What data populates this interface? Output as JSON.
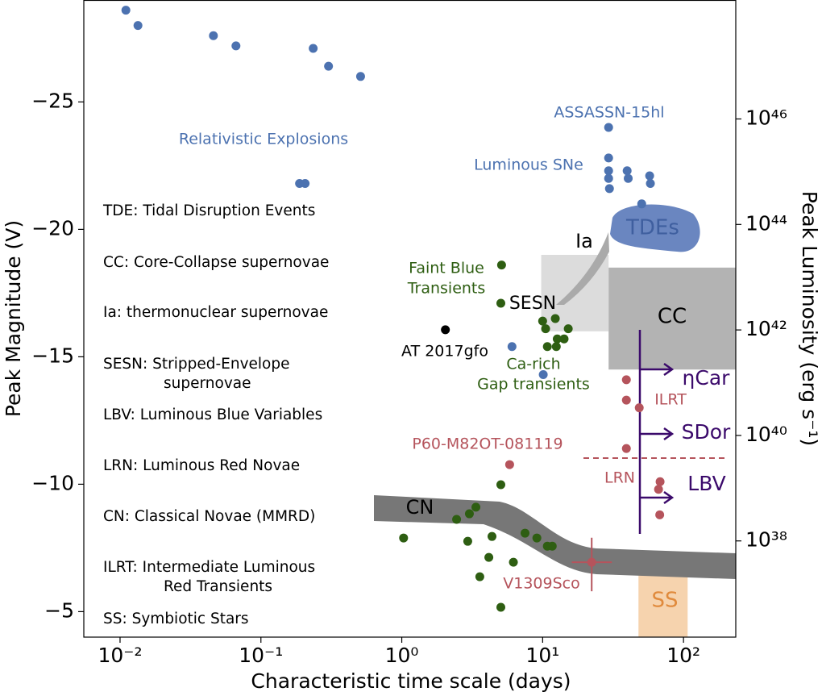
{
  "chart_data": {
    "type": "scatter",
    "xlabel": "Characteristic time scale (days)",
    "ylabel": "Peak Magnitude (V)",
    "y2label": "Peak Luminosity (erg s⁻¹)",
    "xscale": "log",
    "y2scale": "log",
    "xlim": [
      0.00553,
      235
    ],
    "ylim": [
      -4,
      -29
    ],
    "y2lim": [
      1.5e+36,
      1.8e+48
    ],
    "xticks": [
      {
        "value": 0.01,
        "label": "10⁻²"
      },
      {
        "value": 0.1,
        "label": "10⁻¹"
      },
      {
        "value": 1,
        "label": "10⁰"
      },
      {
        "value": 10,
        "label": "10¹"
      },
      {
        "value": 100,
        "label": "10²"
      }
    ],
    "yticks": [
      {
        "value": -25,
        "label": "−25"
      },
      {
        "value": -20,
        "label": "−20"
      },
      {
        "value": -15,
        "label": "−15"
      },
      {
        "value": -10,
        "label": "−10"
      },
      {
        "value": -5,
        "label": "−5"
      }
    ],
    "y2ticks": [
      {
        "value": 1e+46,
        "label": "10⁴⁶"
      },
      {
        "value": 1e+44,
        "label": "10⁴⁴"
      },
      {
        "value": 1e+42,
        "label": "10⁴²"
      },
      {
        "value": 1e+40,
        "label": "10⁴⁰"
      },
      {
        "value": 1e+38,
        "label": "10³⁸"
      }
    ],
    "series": [
      {
        "color": "#4c72b0",
        "x": [
          0.011,
          0.0134,
          0.046,
          0.0665,
          0.235,
          0.302,
          0.51,
          0.188,
          0.206,
          29.4,
          29.4,
          29.4,
          29.4,
          29.8,
          39.8,
          40.5,
          57.5,
          58.2,
          50.5,
          6.06,
          10.1
        ],
        "values": [
          -28.6,
          -28.0,
          -27.6,
          -27.2,
          -27.1,
          -26.4,
          -26.0,
          -21.8,
          -21.8,
          -24.0,
          -22.8,
          -22.3,
          -22.0,
          -21.6,
          -22.3,
          -22.0,
          -22.1,
          -21.8,
          -21.0,
          -15.4,
          -14.3
        ]
      },
      {
        "color": "#2e5e12",
        "x": [
          5.11,
          5.05,
          10.0,
          10.5,
          12.3,
          15.2,
          12.7,
          10.8,
          12.5,
          14.2,
          5.05,
          1.03,
          2.45,
          3.02,
          3.36,
          2.94,
          4.37,
          7.5,
          9.1,
          11.7,
          10.8,
          4.15,
          6.2,
          3.58,
          5.05
        ],
        "values": [
          -18.6,
          -17.1,
          -16.4,
          -16.1,
          -16.5,
          -16.1,
          -15.7,
          -15.4,
          -15.4,
          -15.7,
          -9.98,
          -7.89,
          -8.62,
          -8.84,
          -9.1,
          -7.76,
          -7.95,
          -8.08,
          -7.89,
          -7.57,
          -7.57,
          -7.13,
          -6.94,
          -6.37,
          -5.17
        ]
      },
      {
        "color": "#000000",
        "x": [
          2.04
        ],
        "values": [
          -16.06
        ]
      },
      {
        "color": "#b5545c",
        "x": [
          5.83,
          39.3,
          39.3,
          48.5,
          39.3,
          68.2,
          66.5,
          67.8
        ],
        "values": [
          -10.77,
          -14.1,
          -13.3,
          -13.0,
          -11.4,
          -10.1,
          -9.8,
          -8.8
        ]
      }
    ],
    "error_point": {
      "color": "#b5545c",
      "x": 22.3,
      "value": -6.94,
      "x_range": [
        16.1,
        31.0
      ],
      "y_range": [
        -7.9,
        -5.8
      ]
    },
    "regions": [
      {
        "color": "#dcdcdc",
        "x": [
          9.77,
          29.4
        ],
        "y": [
          -19.0,
          -16.0
        ]
      },
      {
        "color": "#b3b3b3",
        "x": [
          29.4,
          235
        ],
        "y": [
          -18.5,
          -14.5
        ]
      },
      {
        "color": "#f6d3ae",
        "x": [
          47.9,
          107
        ],
        "y": [
          -7.03,
          -4
        ]
      }
    ],
    "annotations": [
      {
        "text": "Relativistic Explosions",
        "color": "#4c72b0"
      },
      {
        "text": "ASSASSN-15hl",
        "color": "#4c72b0"
      },
      {
        "text": "Luminous SNe",
        "color": "#4c72b0"
      },
      {
        "text": "TDEs",
        "color": "#3f5f9f"
      },
      {
        "text": "Ia",
        "color": "#000000"
      },
      {
        "text": "Faint Blue",
        "color": "#2e5e12"
      },
      {
        "text": "Transients",
        "color": "#2e5e12"
      },
      {
        "text": "SESN",
        "color": "#000000"
      },
      {
        "text": "CC",
        "color": "#000000"
      },
      {
        "text": "AT 2017gfo",
        "color": "#000000"
      },
      {
        "text": "Ca-rich",
        "color": "#2e5e12"
      },
      {
        "text": "Gap transients",
        "color": "#2e5e12"
      },
      {
        "text": "ηCar",
        "color": "#3b0a6b"
      },
      {
        "text": "ILRT",
        "color": "#b5545c"
      },
      {
        "text": "SDor",
        "color": "#3b0a6b"
      },
      {
        "text": "P60-M82OT-081119",
        "color": "#b5545c"
      },
      {
        "text": "LRN",
        "color": "#b5545c"
      },
      {
        "text": "LBV",
        "color": "#3b0a6b"
      },
      {
        "text": "CN",
        "color": "#000000"
      },
      {
        "text": "V1309Sco",
        "color": "#b5545c"
      },
      {
        "text": "SS",
        "color": "#e08a3c"
      }
    ],
    "notes": [
      [
        "TDE: Tidal Disruption Events"
      ],
      [
        "CC: Core-Collapse supernovae"
      ],
      [
        "Ia: thermonuclear supernovae"
      ],
      [
        "SESN: Stripped-Envelope",
        "supernovae"
      ],
      [
        "LBV: Luminous Blue Variables"
      ],
      [
        "LRN: Luminous Red Novae"
      ],
      [
        "CN: Classical Novae (MMRD)"
      ],
      [
        "ILRT: Intermediate Luminous",
        "Red Transients"
      ],
      [
        "SS: Symbiotic Stars"
      ]
    ]
  }
}
